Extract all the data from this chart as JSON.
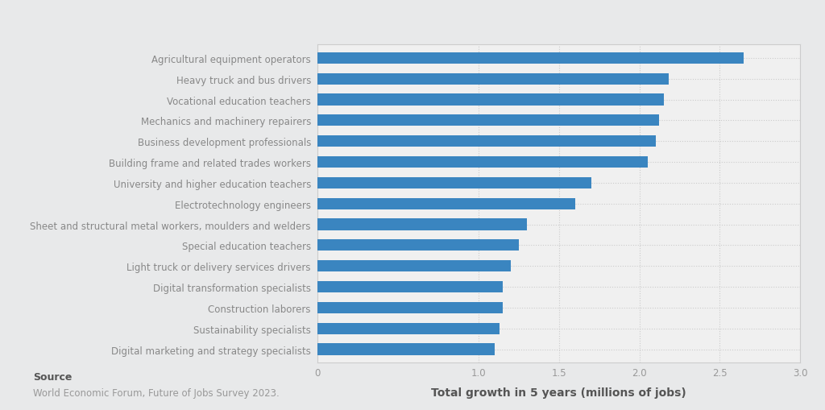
{
  "categories": [
    "Digital marketing and strategy specialists",
    "Sustainability specialists",
    "Construction laborers",
    "Digital transformation specialists",
    "Light truck or delivery services drivers",
    "Special education teachers",
    "Sheet and structural metal workers, moulders and welders",
    "Electrotechnology engineers",
    "University and higher education teachers",
    "Building frame and related trades workers",
    "Business development professionals",
    "Mechanics and machinery repairers",
    "Vocational education teachers",
    "Heavy truck and bus drivers",
    "Agricultural equipment operators"
  ],
  "values": [
    1.1,
    1.13,
    1.15,
    1.15,
    1.2,
    1.25,
    1.3,
    1.6,
    1.7,
    2.05,
    2.1,
    2.12,
    2.15,
    2.18,
    2.65
  ],
  "bar_color": "#3a85c0",
  "outer_bg": "#e8e9ea",
  "plot_bg": "#f0f0f0",
  "xlabel": "Total growth in 5 years (millions of jobs)",
  "xlim": [
    0,
    3.0
  ],
  "xticks": [
    0,
    1.0,
    1.5,
    2.0,
    2.5,
    3.0
  ],
  "xtick_labels": [
    "0",
    "1.0",
    "1.5",
    "2.0",
    "2.5",
    "3.0"
  ],
  "source_label": "Source",
  "source_text": "World Economic Forum, Future of Jobs Survey 2023.",
  "label_fontsize": 8.5,
  "xlabel_fontsize": 10,
  "tick_fontsize": 8.5,
  "tick_color": "#999999",
  "label_color": "#888888",
  "xlabel_color": "#555555",
  "grid_color": "#cccccc",
  "bar_height": 0.55
}
